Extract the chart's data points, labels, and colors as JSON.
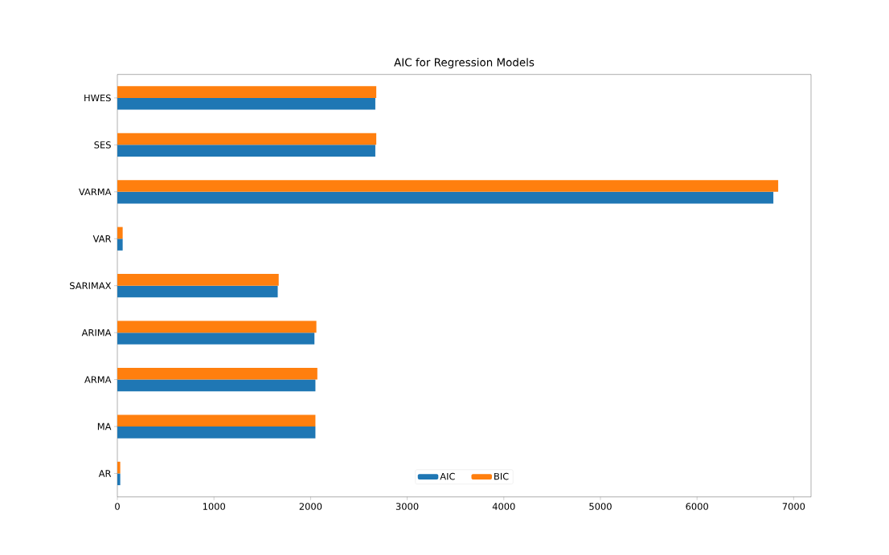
{
  "chart_data": {
    "type": "bar",
    "orientation": "horizontal",
    "title": "AIC for Regression Models",
    "categories": [
      "HWES",
      "SES",
      "VARMA",
      "VAR",
      "SARIMAX",
      "ARIMA",
      "ARMA",
      "MA",
      "AR"
    ],
    "series": [
      {
        "name": "AIC",
        "color": "#1f77b4",
        "values": [
          2670,
          2670,
          6790,
          55,
          1660,
          2040,
          2050,
          2050,
          30
        ]
      },
      {
        "name": "BIC",
        "color": "#ff7f0e",
        "values": [
          2680,
          2680,
          6840,
          55,
          1670,
          2060,
          2070,
          2050,
          30
        ]
      }
    ],
    "xlim": [
      0,
      7180
    ],
    "xticks": [
      0,
      1000,
      2000,
      3000,
      4000,
      5000,
      6000,
      7000
    ],
    "legend": "bottom"
  }
}
